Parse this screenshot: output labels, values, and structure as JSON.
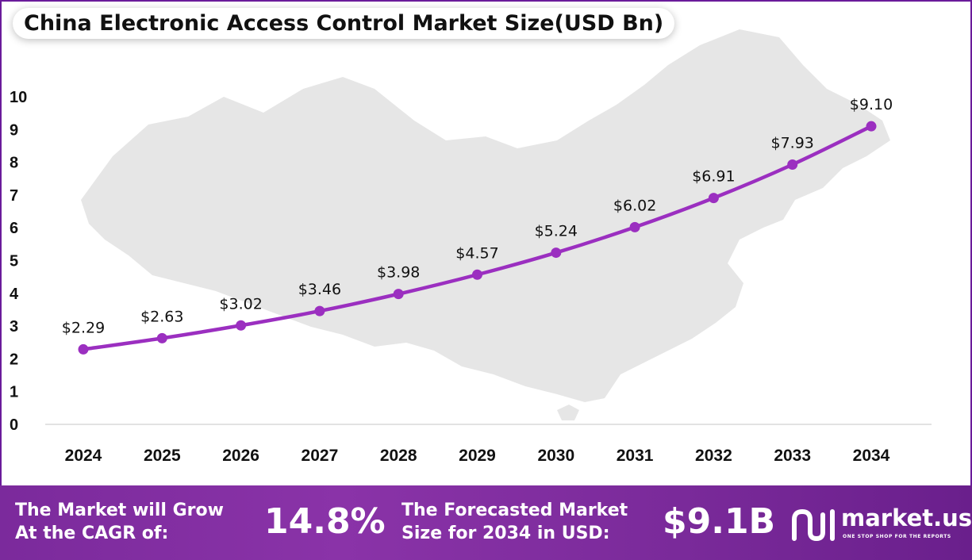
{
  "chart_data": {
    "type": "line",
    "title": "China Electronic Access Control Market Size(USD Bn)",
    "categories": [
      "2024",
      "2025",
      "2026",
      "2027",
      "2028",
      "2029",
      "2030",
      "2031",
      "2032",
      "2033",
      "2034"
    ],
    "values": [
      2.29,
      2.63,
      3.02,
      3.46,
      3.98,
      4.57,
      5.24,
      6.02,
      6.91,
      7.93,
      9.1
    ],
    "data_labels": [
      "$2.29",
      "$2.63",
      "$3.02",
      "$3.46",
      "$3.98",
      "$4.57",
      "$5.24",
      "$6.02",
      "$6.91",
      "$7.93",
      "$9.10"
    ],
    "ylim": [
      0,
      10
    ],
    "yticks": [
      "0",
      "1",
      "2",
      "3",
      "4",
      "5",
      "6",
      "7",
      "8",
      "9",
      "10"
    ],
    "xlabel": "",
    "ylabel": "",
    "grid": false,
    "legend": "none",
    "line_color": "#9b2fc0",
    "background_image": "china-map-silhouette"
  },
  "footer": {
    "cagr_label_line1": "The Market will Grow",
    "cagr_label_line2": "At the CAGR of:",
    "cagr_value": "14.8%",
    "forecast_label_line1": "The Forecasted Market",
    "forecast_label_line2": "Size for 2034 in USD:",
    "forecast_value": "$9.1B",
    "brand_name": "market.us",
    "brand_tagline": "ONE STOP SHOP FOR THE REPORTS",
    "background_color": "#7b2a9c"
  }
}
